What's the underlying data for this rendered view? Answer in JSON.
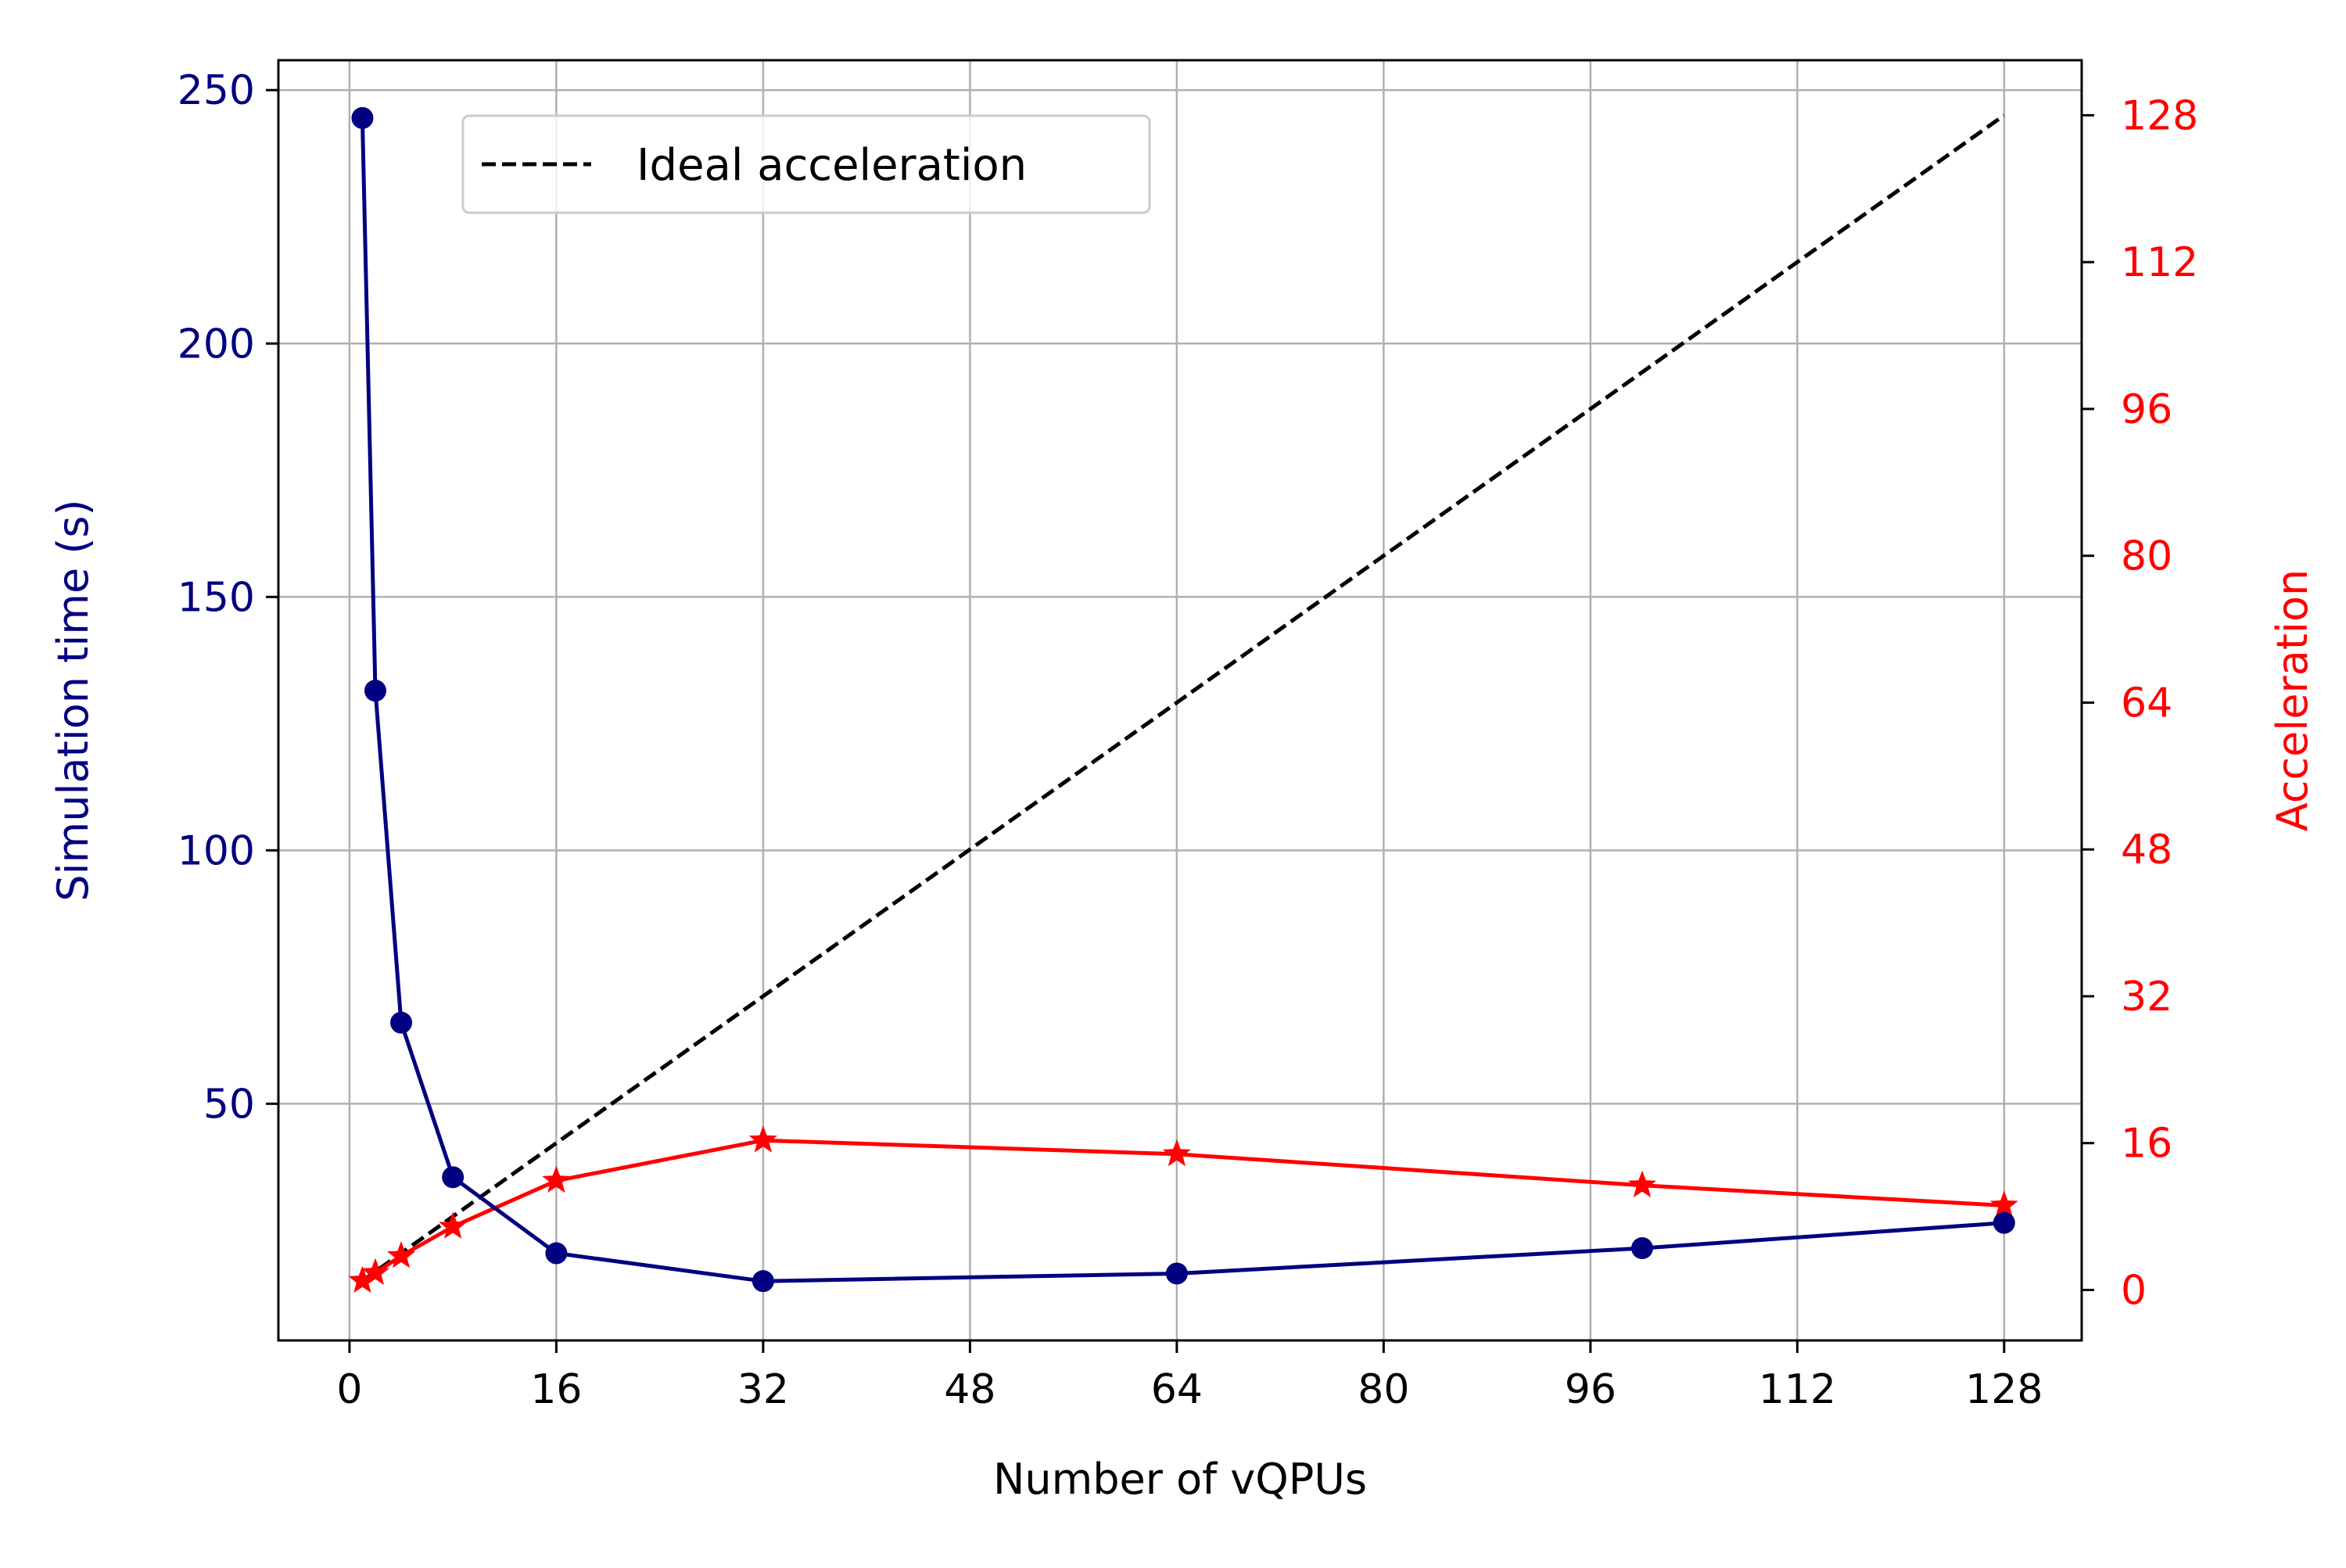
{
  "chart_data": {
    "type": "line",
    "title": "",
    "xlabel": "Number of vQPUs",
    "ylabel_left": "Simulation time (s)",
    "ylabel_right": "Acceleration",
    "x": [
      1,
      2,
      4,
      8,
      16,
      32,
      64,
      100,
      128
    ],
    "xlim": [
      -5.5,
      134
    ],
    "xticks": [
      0,
      16,
      32,
      48,
      64,
      80,
      96,
      112,
      128
    ],
    "ylim_left": [
      3.3,
      255.9
    ],
    "yticks_left": [
      50,
      100,
      150,
      200,
      250
    ],
    "ylim_right": [
      -5.5,
      134
    ],
    "yticks_right": [
      0,
      16,
      32,
      48,
      64,
      80,
      96,
      112,
      128
    ],
    "grid": true,
    "legend_placement": "upper-left",
    "series": [
      {
        "axis": "left",
        "marker": "circle",
        "color": "#000080",
        "values": [
          244.5,
          131.5,
          66,
          35.5,
          20.5,
          15,
          16.5,
          21.5,
          26.5
        ]
      },
      {
        "axis": "right",
        "marker": "star",
        "color": "#ff0000",
        "values": [
          1,
          1.86,
          3.7,
          6.9,
          11.9,
          16.3,
          14.8,
          11.4,
          9.2
        ]
      },
      {
        "name": "Ideal acceleration",
        "axis": "right",
        "style": "dashed",
        "color": "#000000",
        "x": [
          1,
          128
        ],
        "values": [
          1,
          128
        ]
      }
    ],
    "colors": {
      "left_axis": "#000080",
      "right_axis": "#ff0000",
      "grid": "#b0b0b0"
    }
  }
}
